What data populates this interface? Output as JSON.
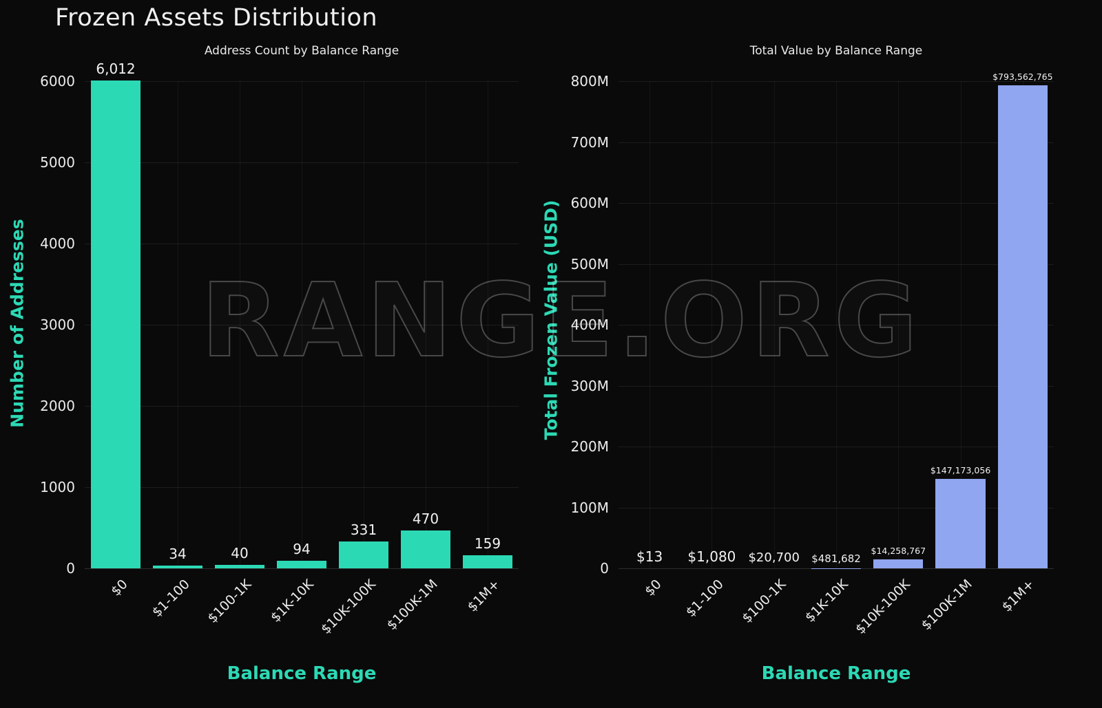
{
  "page": {
    "title": "Frozen Assets Distribution",
    "watermark": "RANGE.ORG",
    "background": "#0a0a0a"
  },
  "colors": {
    "teal": "#2cd9b5",
    "blue": "#91a6f0",
    "text": "#ececec",
    "grid": "rgba(255,255,255,0.08)"
  },
  "chart_data": [
    {
      "type": "bar",
      "title": "Address Count by Balance Range",
      "xlabel": "Balance Range",
      "ylabel": "Number of Addresses",
      "categories": [
        "$0",
        "$1-100",
        "$100-1K",
        "$1K-10K",
        "$10K-100K",
        "$100K-1M",
        "$1M+"
      ],
      "values": [
        6012,
        34,
        40,
        94,
        331,
        470,
        159
      ],
      "value_labels": [
        "6,012",
        "34",
        "40",
        "94",
        "331",
        "470",
        "159"
      ],
      "ylim": [
        0,
        6000
      ],
      "yticks": [
        0,
        1000,
        2000,
        3000,
        4000,
        5000,
        6000
      ],
      "ytick_labels": [
        "0",
        "1000",
        "2000",
        "3000",
        "4000",
        "5000",
        "6000"
      ],
      "bar_color": "#2cd9b5",
      "grid": true,
      "legend": "none"
    },
    {
      "type": "bar",
      "title": "Total Value by Balance Range",
      "xlabel": "Balance Range",
      "ylabel": "Total Frozen Value (USD)",
      "categories": [
        "$0",
        "$1-100",
        "$100-1K",
        "$1K-10K",
        "$10K-100K",
        "$100K-1M",
        "$1M+"
      ],
      "values": [
        13,
        1080,
        20700,
        481682,
        14258767,
        147173056,
        793562765
      ],
      "value_labels": [
        "$13",
        "$1,080",
        "$20,700",
        "$481,682",
        "$14,258,767",
        "$147,173,056",
        "$793,562,765"
      ],
      "ylim": [
        0,
        800000000
      ],
      "yticks": [
        0,
        100000000,
        200000000,
        300000000,
        400000000,
        500000000,
        600000000,
        700000000,
        800000000
      ],
      "ytick_labels": [
        "0",
        "100M",
        "200M",
        "300M",
        "400M",
        "500M",
        "600M",
        "700M",
        "800M"
      ],
      "bar_color": "#91a6f0",
      "grid": true,
      "legend": "none"
    }
  ]
}
